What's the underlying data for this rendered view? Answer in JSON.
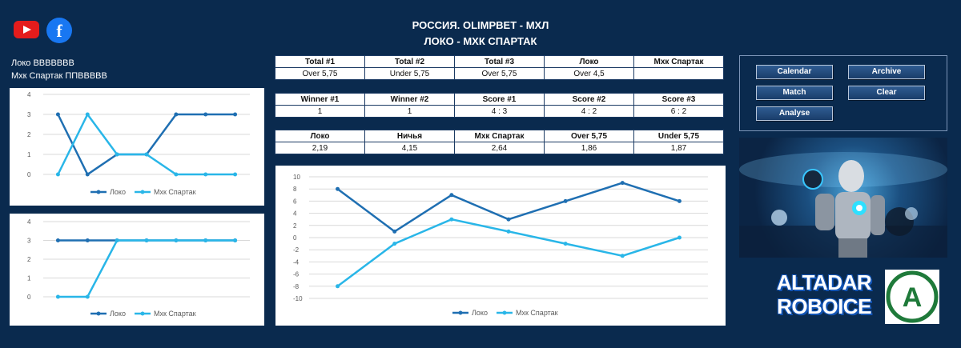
{
  "header": {
    "line1": "РОССИЯ. OLIMPBET - МХЛ",
    "line2": "ЛОКО - МХК СПАРТАК"
  },
  "icons": {
    "youtube": "youtube-icon",
    "facebook": "facebook-icon",
    "facebook_glyph": "f"
  },
  "form": {
    "home": "Локо ВВВВВВВ",
    "away": "Мхк Спартак ППВВВВВ"
  },
  "tables": {
    "totals": {
      "headers": [
        "Total #1",
        "Total #2",
        "Total #3",
        "Локо",
        "Мхк Спартак"
      ],
      "values": [
        "Over 5,75",
        "Under 5,75",
        "Over 5,75",
        "Over 4,5",
        ""
      ]
    },
    "winners": {
      "headers": [
        "Winner #1",
        "Winner #2",
        "Score #1",
        "Score #2",
        "Score #3"
      ],
      "values": [
        "1",
        "1",
        "4 : 3",
        "4 : 2",
        "6 : 2"
      ]
    },
    "odds": {
      "headers": [
        "Локо",
        "Ничья",
        "Мхк Спартак",
        "Over 5,75",
        "Under 5,75"
      ],
      "values": [
        "2,19",
        "4,15",
        "2,64",
        "1,86",
        "1,87"
      ]
    }
  },
  "buttons": {
    "calendar": "Calendar",
    "archive": "Archive",
    "match": "Match",
    "clear": "Clear",
    "analyse": "Analyse"
  },
  "logo": {
    "line1": "ALTADAR",
    "line2": "ROBOICE",
    "badge_letter": "A"
  },
  "colors": {
    "background": "#0a2a4e",
    "series_home": "#1f6fb2",
    "series_away": "#29b6e8"
  },
  "chart_data": [
    {
      "type": "line",
      "x": [
        1,
        2,
        3,
        4,
        5,
        6,
        7
      ],
      "ylim": [
        0,
        4
      ],
      "yticks": [
        "0",
        "1",
        "2",
        "3",
        "4"
      ],
      "series": [
        {
          "name": "Локо",
          "values": [
            3,
            0,
            1,
            1,
            3,
            3,
            3
          ]
        },
        {
          "name": "Мхк Спартак",
          "values": [
            0,
            3,
            1,
            1,
            0,
            0,
            0
          ]
        }
      ]
    },
    {
      "type": "line",
      "x": [
        1,
        2,
        3,
        4,
        5,
        6,
        7
      ],
      "ylim": [
        0,
        4
      ],
      "yticks": [
        "0",
        "1",
        "2",
        "3",
        "4"
      ],
      "series": [
        {
          "name": "Локо",
          "values": [
            3,
            3,
            3,
            3,
            3,
            3,
            3
          ]
        },
        {
          "name": "Мхк Спартак",
          "values": [
            0,
            0,
            3,
            3,
            3,
            3,
            3
          ]
        }
      ]
    },
    {
      "type": "line",
      "x": [
        1,
        2,
        3,
        4,
        5,
        6,
        7
      ],
      "ylim": [
        -10,
        10
      ],
      "yticks": [
        "10",
        "8",
        "6",
        "4",
        "2",
        "0",
        "-2",
        "-4",
        "-6",
        "-8",
        "-10"
      ],
      "series": [
        {
          "name": "Локо",
          "values": [
            8,
            1,
            7,
            3,
            6,
            9,
            6
          ]
        },
        {
          "name": "Мхк Спартак",
          "values": [
            -8,
            -1,
            3,
            1,
            -1,
            -3,
            0
          ]
        }
      ]
    }
  ]
}
